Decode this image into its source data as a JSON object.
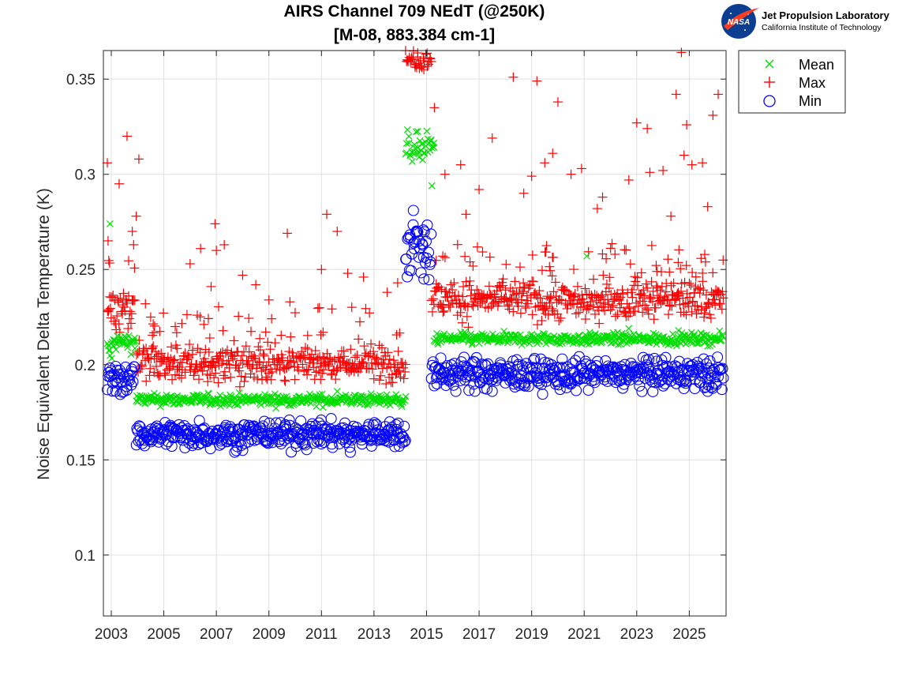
{
  "logo": {
    "agency": "NASA",
    "name": "Jet Propulsion Laboratory",
    "subtitle": "California Institute of Technology"
  },
  "colors": {
    "mean": "#00dd00",
    "max": "#ff0000",
    "min": "#0000ff",
    "grid": "#e0e0e0",
    "axis": "#262626"
  },
  "chart_data": {
    "type": "scatter",
    "title": "AIRS Channel 709 NEdT (@250K)",
    "subtitle": "[M-08, 883.384 cm-1]",
    "xlabel": "",
    "ylabel": "Noise Equivalent Delta Temperature (K)",
    "xlim": [
      2002.7,
      2026.4
    ],
    "ylim": [
      0.068,
      0.365
    ],
    "xticks": [
      2003,
      2005,
      2007,
      2009,
      2011,
      2013,
      2015,
      2017,
      2019,
      2021,
      2023,
      2025
    ],
    "xtick_labels": [
      "2003",
      "2005",
      "2007",
      "2009",
      "2011",
      "2013",
      "2015",
      "2017",
      "2019",
      "2021",
      "2023",
      "2025"
    ],
    "yticks": [
      0.1,
      0.15,
      0.2,
      0.25,
      0.3,
      0.35
    ],
    "ytick_labels": [
      "0.1",
      "0.15",
      "0.2",
      "0.25",
      "0.3",
      "0.35"
    ],
    "grid": true,
    "legend_position": "outside-top-right",
    "series": [
      {
        "name": "Mean",
        "marker": "x",
        "segments": [
          {
            "x_start": 2002.85,
            "x_end": 2003.1,
            "y": 0.207,
            "spread": 0.004
          },
          {
            "x_start": 2003.1,
            "x_end": 2003.95,
            "y": 0.212,
            "spread": 0.0025
          },
          {
            "x_start": 2003.95,
            "x_end": 2014.2,
            "y": 0.1815,
            "spread": 0.0015
          },
          {
            "x_start": 2014.2,
            "x_end": 2015.3,
            "y": 0.314,
            "spread": 0.004
          },
          {
            "x_start": 2015.3,
            "x_end": 2026.3,
            "y": 0.2135,
            "spread": 0.0015
          }
        ],
        "outliers": [
          {
            "x": 2002.95,
            "y": 0.274
          },
          {
            "x": 2005.1,
            "y": 0.184
          },
          {
            "x": 2011.6,
            "y": 0.186
          },
          {
            "x": 2015.2,
            "y": 0.294
          },
          {
            "x": 2016.3,
            "y": 0.217
          },
          {
            "x": 2021.1,
            "y": 0.257
          },
          {
            "x": 2022.7,
            "y": 0.219
          }
        ]
      },
      {
        "name": "Max",
        "marker": "+",
        "segments": [
          {
            "x_start": 2002.85,
            "x_end": 2003.9,
            "y": 0.231,
            "spread": 0.006
          },
          {
            "x_start": 2003.95,
            "x_end": 2014.2,
            "y": 0.201,
            "spread": 0.005
          },
          {
            "x_start": 2014.2,
            "x_end": 2015.2,
            "y": 0.361,
            "spread": 0.003
          },
          {
            "x_start": 2015.2,
            "x_end": 2026.3,
            "y": 0.234,
            "spread": 0.005
          }
        ],
        "outliers": [
          {
            "x": 2002.85,
            "y": 0.306
          },
          {
            "x": 2003.3,
            "y": 0.295
          },
          {
            "x": 2003.6,
            "y": 0.32
          },
          {
            "x": 2003.8,
            "y": 0.27
          },
          {
            "x": 2003.85,
            "y": 0.263
          },
          {
            "x": 2003.95,
            "y": 0.278
          },
          {
            "x": 2004.05,
            "y": 0.308
          },
          {
            "x": 2004.3,
            "y": 0.232
          },
          {
            "x": 2004.5,
            "y": 0.225
          },
          {
            "x": 2006.0,
            "y": 0.253
          },
          {
            "x": 2006.4,
            "y": 0.261
          },
          {
            "x": 2006.8,
            "y": 0.241
          },
          {
            "x": 2006.95,
            "y": 0.274
          },
          {
            "x": 2007.0,
            "y": 0.26
          },
          {
            "x": 2007.3,
            "y": 0.263
          },
          {
            "x": 2008.0,
            "y": 0.247
          },
          {
            "x": 2008.5,
            "y": 0.242
          },
          {
            "x": 2009.0,
            "y": 0.234
          },
          {
            "x": 2009.7,
            "y": 0.269
          },
          {
            "x": 2009.8,
            "y": 0.233
          },
          {
            "x": 2011.0,
            "y": 0.25
          },
          {
            "x": 2011.2,
            "y": 0.279
          },
          {
            "x": 2011.6,
            "y": 0.27
          },
          {
            "x": 2012.0,
            "y": 0.248
          },
          {
            "x": 2012.6,
            "y": 0.246
          },
          {
            "x": 2013.5,
            "y": 0.238
          },
          {
            "x": 2013.9,
            "y": 0.243
          },
          {
            "x": 2015.3,
            "y": 0.335
          },
          {
            "x": 2015.7,
            "y": 0.3
          },
          {
            "x": 2016.3,
            "y": 0.305
          },
          {
            "x": 2016.5,
            "y": 0.279
          },
          {
            "x": 2017.0,
            "y": 0.292
          },
          {
            "x": 2017.5,
            "y": 0.319
          },
          {
            "x": 2018.3,
            "y": 0.351
          },
          {
            "x": 2018.7,
            "y": 0.29
          },
          {
            "x": 2019.0,
            "y": 0.299
          },
          {
            "x": 2019.2,
            "y": 0.349
          },
          {
            "x": 2019.5,
            "y": 0.306
          },
          {
            "x": 2019.8,
            "y": 0.311
          },
          {
            "x": 2020.0,
            "y": 0.338
          },
          {
            "x": 2020.5,
            "y": 0.3
          },
          {
            "x": 2020.9,
            "y": 0.303
          },
          {
            "x": 2021.5,
            "y": 0.282
          },
          {
            "x": 2021.7,
            "y": 0.288
          },
          {
            "x": 2022.7,
            "y": 0.297
          },
          {
            "x": 2023.0,
            "y": 0.327
          },
          {
            "x": 2023.4,
            "y": 0.324
          },
          {
            "x": 2023.5,
            "y": 0.301
          },
          {
            "x": 2024.0,
            "y": 0.302
          },
          {
            "x": 2024.3,
            "y": 0.278
          },
          {
            "x": 2024.5,
            "y": 0.342
          },
          {
            "x": 2024.7,
            "y": 0.364
          },
          {
            "x": 2024.8,
            "y": 0.31
          },
          {
            "x": 2024.9,
            "y": 0.326
          },
          {
            "x": 2025.1,
            "y": 0.305
          },
          {
            "x": 2025.5,
            "y": 0.306
          },
          {
            "x": 2025.7,
            "y": 0.283
          },
          {
            "x": 2025.9,
            "y": 0.331
          },
          {
            "x": 2026.1,
            "y": 0.342
          }
        ]
      },
      {
        "name": "Min",
        "marker": "o",
        "segments": [
          {
            "x_start": 2002.85,
            "x_end": 2003.9,
            "y": 0.1925,
            "spread": 0.004
          },
          {
            "x_start": 2003.95,
            "x_end": 2014.2,
            "y": 0.1635,
            "spread": 0.0035
          },
          {
            "x_start": 2014.2,
            "x_end": 2015.2,
            "y": 0.262,
            "spread": 0.009
          },
          {
            "x_start": 2015.2,
            "x_end": 2026.3,
            "y": 0.195,
            "spread": 0.004
          }
        ],
        "outliers": [
          {
            "x": 2007.7,
            "y": 0.154
          },
          {
            "x": 2008.0,
            "y": 0.155
          },
          {
            "x": 2012.1,
            "y": 0.154
          },
          {
            "x": 2014.9,
            "y": 0.245
          },
          {
            "x": 2014.5,
            "y": 0.281
          },
          {
            "x": 2017.5,
            "y": 0.186
          },
          {
            "x": 2025.7,
            "y": 0.186
          }
        ]
      }
    ]
  }
}
